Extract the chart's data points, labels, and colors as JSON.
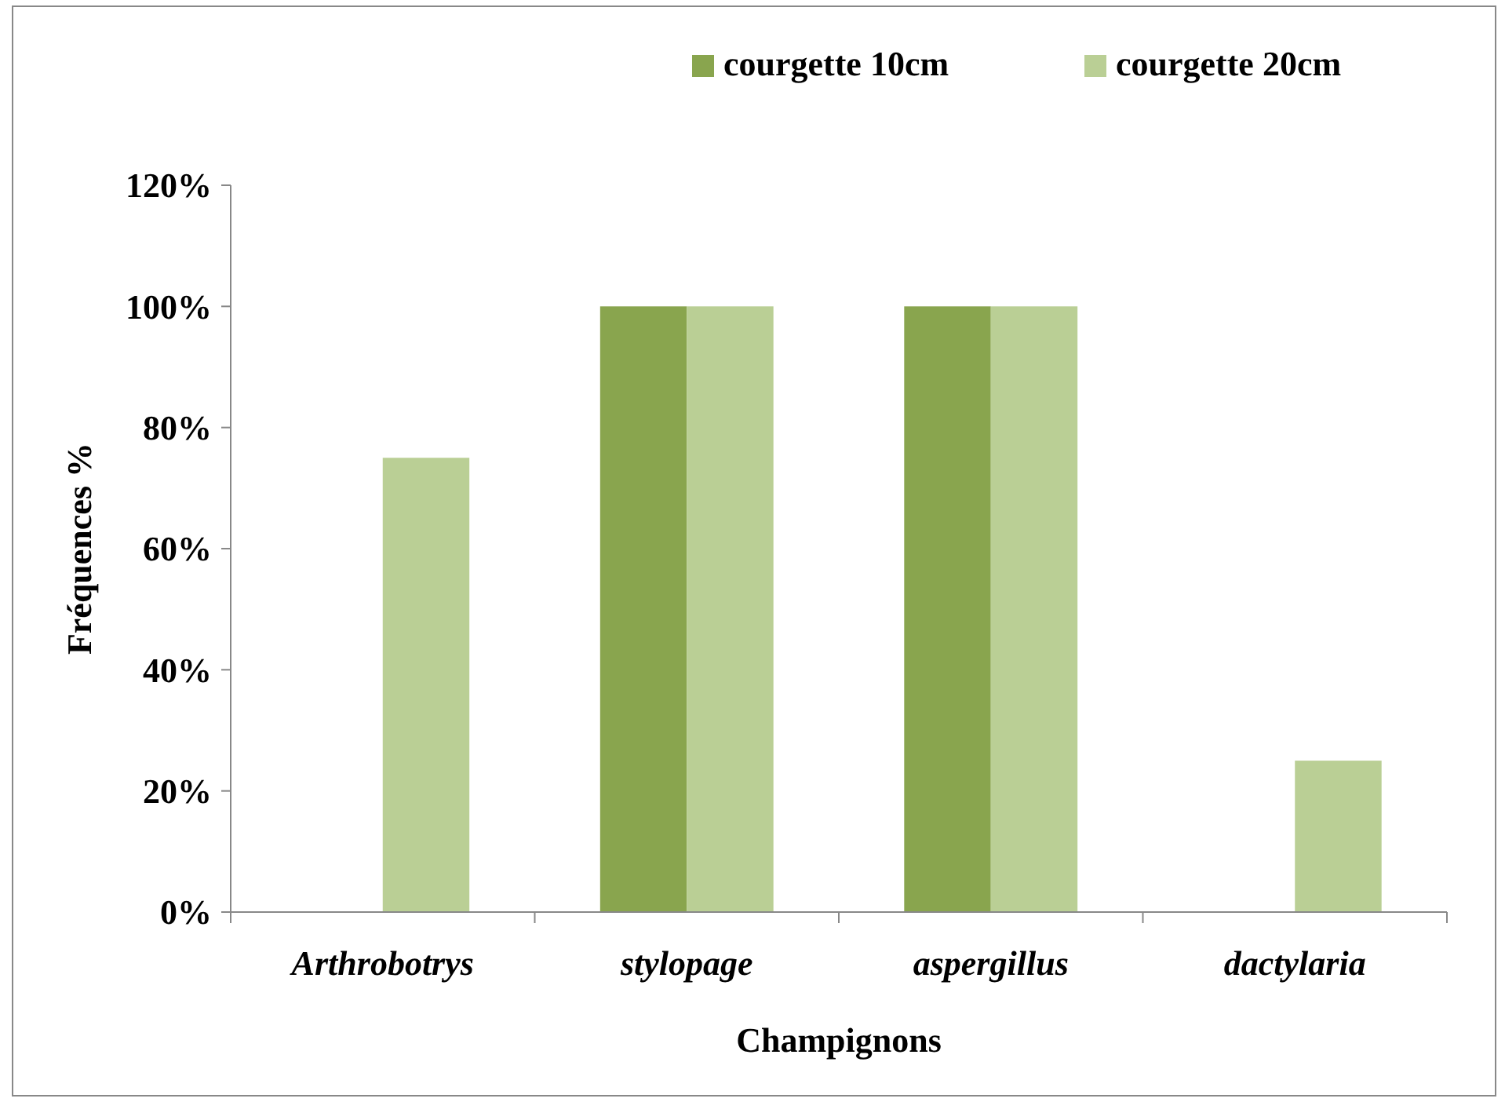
{
  "chart_data": {
    "type": "bar",
    "xlabel": "Champignons",
    "ylabel": "Fréquences %",
    "categories": [
      "Arthrobotrys",
      "stylopage",
      "aspergillus",
      "dactylaria"
    ],
    "series": [
      {
        "name": "courgette 10cm",
        "color": "#89a54e",
        "values": [
          0,
          100,
          100,
          0
        ]
      },
      {
        "name": "courgette 20cm",
        "color": "#bacf95",
        "values": [
          75,
          100,
          100,
          25
        ]
      }
    ],
    "ylim": [
      0,
      120
    ],
    "yticks": [
      {
        "value": 0,
        "label": "0%"
      },
      {
        "value": 20,
        "label": "20%"
      },
      {
        "value": 40,
        "label": "40%"
      },
      {
        "value": 60,
        "label": "60%"
      },
      {
        "value": 80,
        "label": "80%"
      },
      {
        "value": 100,
        "label": "100%"
      },
      {
        "value": 120,
        "label": "120%"
      }
    ],
    "grid": false,
    "legend": "top right"
  }
}
